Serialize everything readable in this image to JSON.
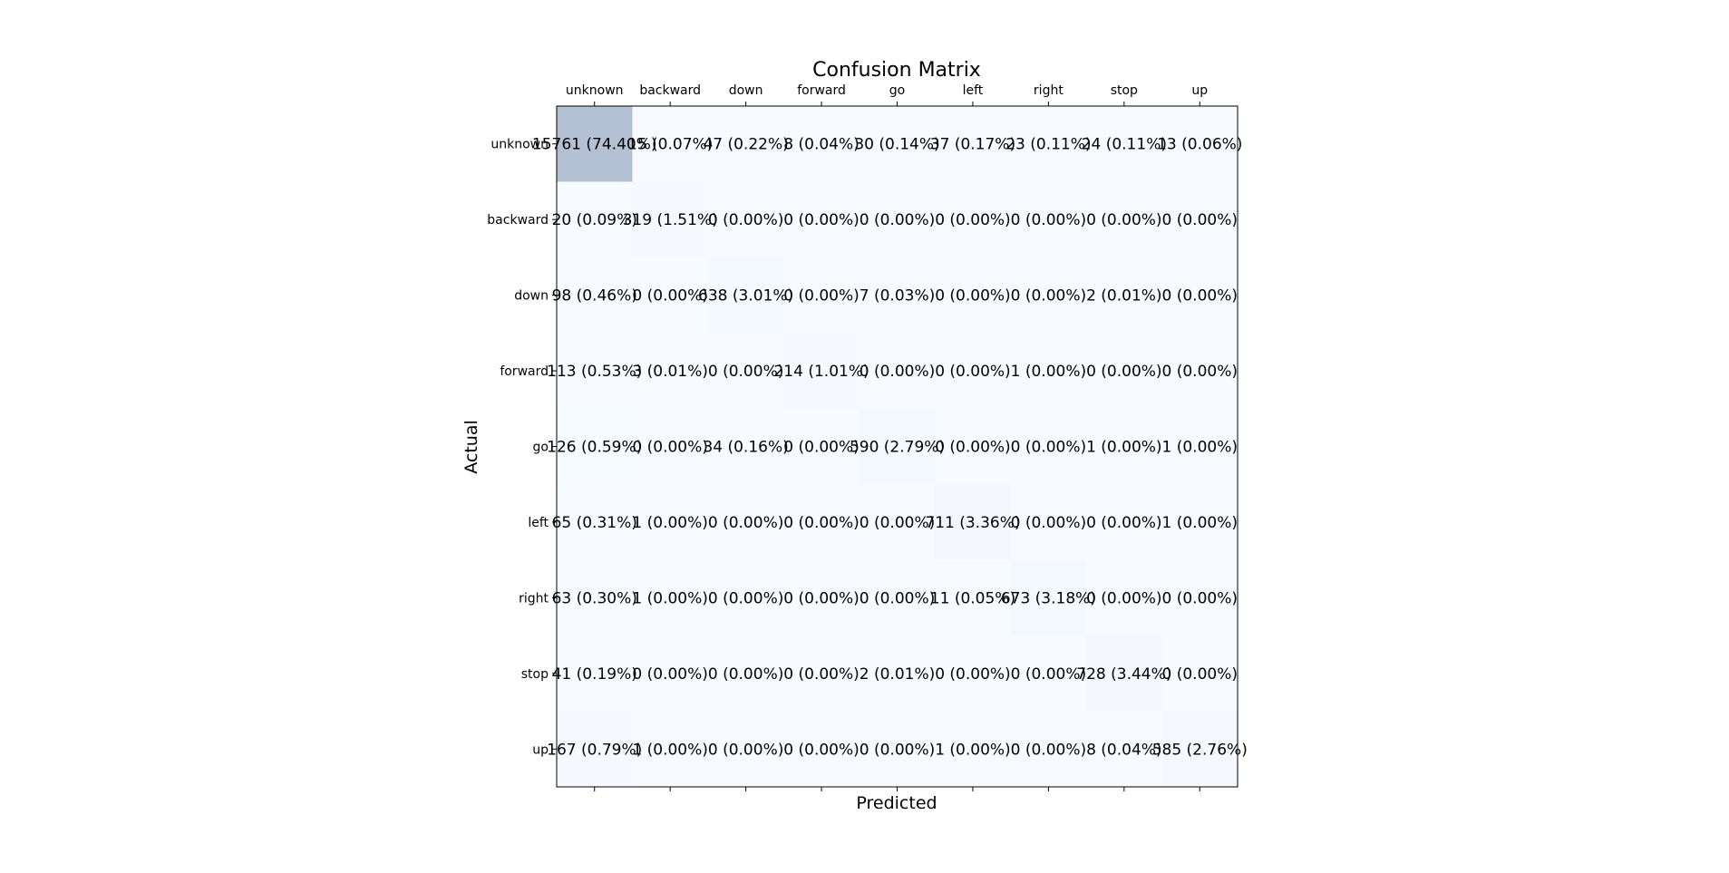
{
  "chart_data": {
    "type": "heatmap",
    "title": "Confusion Matrix",
    "xlabel": "Predicted",
    "ylabel": "Actual",
    "x_categories": [
      "unknown",
      "backward",
      "down",
      "forward",
      "go",
      "left",
      "right",
      "stop",
      "up"
    ],
    "y_categories": [
      "unknown",
      "backward",
      "down",
      "forward",
      "go",
      "left",
      "right",
      "stop",
      "up"
    ],
    "x_ticks_position": "top",
    "colormap": "Blues",
    "cells": [
      [
        "15761 (74.40%)",
        "15 (0.07%)",
        "47 (0.22%)",
        "8 (0.04%)",
        "30 (0.14%)",
        "37 (0.17%)",
        "23 (0.11%)",
        "24 (0.11%)",
        "13 (0.06%)"
      ],
      [
        "20 (0.09%)",
        "319 (1.51%)",
        "0 (0.00%)",
        "0 (0.00%)",
        "0 (0.00%)",
        "0 (0.00%)",
        "0 (0.00%)",
        "0 (0.00%)",
        "0 (0.00%)"
      ],
      [
        "98 (0.46%)",
        "0 (0.00%)",
        "638 (3.01%)",
        "0 (0.00%)",
        "7 (0.03%)",
        "0 (0.00%)",
        "0 (0.00%)",
        "2 (0.01%)",
        "0 (0.00%)"
      ],
      [
        "113 (0.53%)",
        "3 (0.01%)",
        "0 (0.00%)",
        "214 (1.01%)",
        "0 (0.00%)",
        "0 (0.00%)",
        "1 (0.00%)",
        "0 (0.00%)",
        "0 (0.00%)"
      ],
      [
        "126 (0.59%)",
        "0 (0.00%)",
        "34 (0.16%)",
        "0 (0.00%)",
        "590 (2.79%)",
        "0 (0.00%)",
        "0 (0.00%)",
        "1 (0.00%)",
        "1 (0.00%)"
      ],
      [
        "65 (0.31%)",
        "1 (0.00%)",
        "0 (0.00%)",
        "0 (0.00%)",
        "0 (0.00%)",
        "711 (3.36%)",
        "0 (0.00%)",
        "0 (0.00%)",
        "1 (0.00%)"
      ],
      [
        "63 (0.30%)",
        "1 (0.00%)",
        "0 (0.00%)",
        "0 (0.00%)",
        "0 (0.00%)",
        "11 (0.05%)",
        "673 (3.18%)",
        "0 (0.00%)",
        "0 (0.00%)"
      ],
      [
        "41 (0.19%)",
        "0 (0.00%)",
        "0 (0.00%)",
        "0 (0.00%)",
        "2 (0.01%)",
        "0 (0.00%)",
        "0 (0.00%)",
        "728 (3.44%)",
        "0 (0.00%)"
      ],
      [
        "167 (0.79%)",
        "1 (0.00%)",
        "0 (0.00%)",
        "0 (0.00%)",
        "0 (0.00%)",
        "1 (0.00%)",
        "0 (0.00%)",
        "8 (0.04%)",
        "585 (2.76%)"
      ]
    ],
    "counts": [
      [
        15761,
        15,
        47,
        8,
        30,
        37,
        23,
        24,
        13
      ],
      [
        20,
        319,
        0,
        0,
        0,
        0,
        0,
        0,
        0
      ],
      [
        98,
        0,
        638,
        0,
        7,
        0,
        0,
        2,
        0
      ],
      [
        113,
        3,
        0,
        214,
        0,
        0,
        1,
        0,
        0
      ],
      [
        126,
        0,
        34,
        0,
        590,
        0,
        0,
        1,
        1
      ],
      [
        65,
        1,
        0,
        0,
        0,
        711,
        0,
        0,
        1
      ],
      [
        63,
        1,
        0,
        0,
        0,
        11,
        673,
        0,
        0
      ],
      [
        41,
        0,
        0,
        0,
        2,
        0,
        0,
        728,
        0
      ],
      [
        167,
        1,
        0,
        0,
        0,
        1,
        0,
        8,
        585
      ]
    ]
  }
}
